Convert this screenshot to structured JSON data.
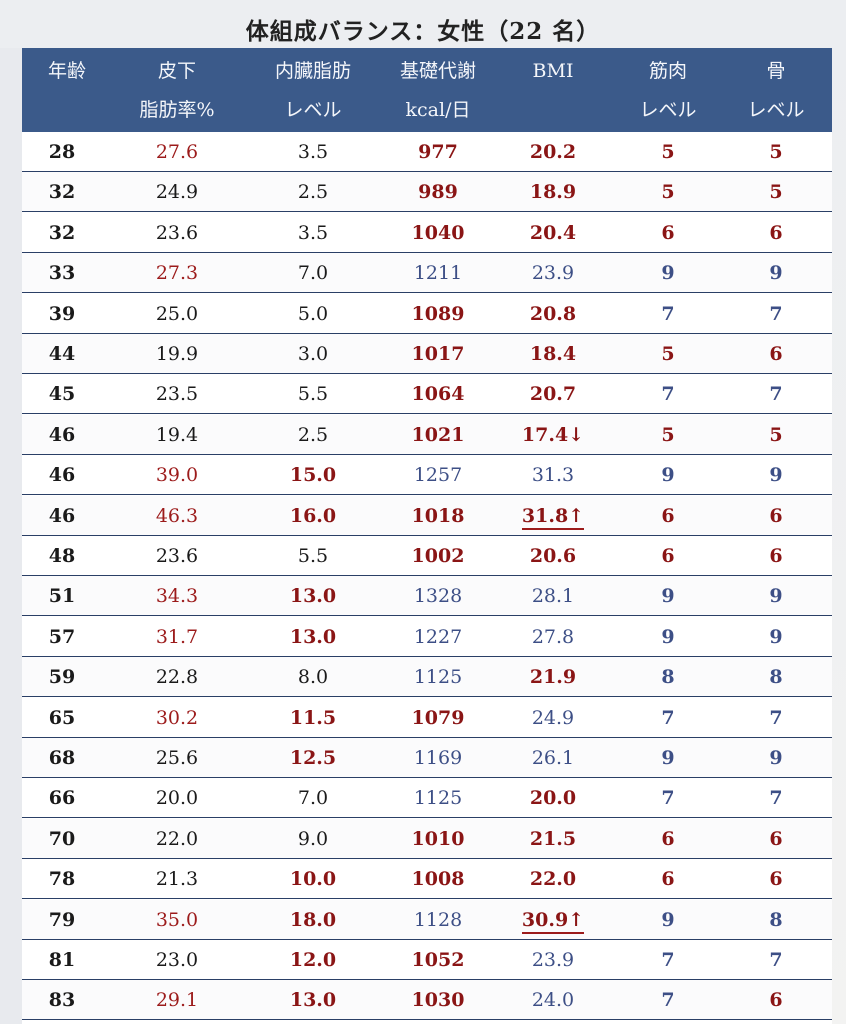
{
  "title": "体組成バランス：女性（22 名）",
  "headers": {
    "age": [
      "年齢",
      ""
    ],
    "fat": [
      "皮下",
      "脂肪率%"
    ],
    "visceral": [
      "内臓脂肪",
      "レベル"
    ],
    "bmr": [
      "基礎代謝",
      "kcal/日"
    ],
    "bmi": [
      "BMI",
      ""
    ],
    "muscle": [
      "筋肉",
      "レベル"
    ],
    "bone": [
      "骨",
      "レベル"
    ]
  },
  "colors": {
    "header_bg": "#3b5a8a",
    "red": "#9c1b1b",
    "blue": "#3d4f86",
    "black": "#1a1a1a"
  },
  "rows": [
    {
      "age": "28",
      "fat": "27.6",
      "fat_c": "red",
      "vis": "3.5",
      "vis_c": "black",
      "bmr": "977",
      "bmr_c": "redb",
      "bmi": "20.2",
      "bmi_c": "redb",
      "mus": "5",
      "mus_c": "redb",
      "bone": "5",
      "bone_c": "redb"
    },
    {
      "age": "32",
      "fat": "24.9",
      "fat_c": "black",
      "vis": "2.5",
      "vis_c": "black",
      "bmr": "989",
      "bmr_c": "redb",
      "bmi": "18.9",
      "bmi_c": "redb",
      "mus": "5",
      "mus_c": "redb",
      "bone": "5",
      "bone_c": "redb"
    },
    {
      "age": "32",
      "fat": "23.6",
      "fat_c": "black",
      "vis": "3.5",
      "vis_c": "black",
      "bmr": "1040",
      "bmr_c": "redb",
      "bmi": "20.4",
      "bmi_c": "redb",
      "mus": "6",
      "mus_c": "redb",
      "bone": "6",
      "bone_c": "redb"
    },
    {
      "age": "33",
      "fat": "27.3",
      "fat_c": "red",
      "vis": "7.0",
      "vis_c": "black",
      "bmr": "1211",
      "bmr_c": "blue",
      "bmi": "23.9",
      "bmi_c": "blue",
      "mus": "9",
      "mus_c": "blue",
      "bone": "9",
      "bone_c": "blue"
    },
    {
      "age": "39",
      "fat": "25.0",
      "fat_c": "black",
      "vis": "5.0",
      "vis_c": "black",
      "bmr": "1089",
      "bmr_c": "redb",
      "bmi": "20.8",
      "bmi_c": "redb",
      "mus": "7",
      "mus_c": "blue",
      "bone": "7",
      "bone_c": "blue"
    },
    {
      "age": "44",
      "fat": "19.9",
      "fat_c": "black",
      "vis": "3.0",
      "vis_c": "black",
      "bmr": "1017",
      "bmr_c": "redb",
      "bmi": "18.4",
      "bmi_c": "redb",
      "mus": "5",
      "mus_c": "redb",
      "bone": "6",
      "bone_c": "redb"
    },
    {
      "age": "45",
      "fat": "23.5",
      "fat_c": "black",
      "vis": "5.5",
      "vis_c": "black",
      "bmr": "1064",
      "bmr_c": "redb",
      "bmi": "20.7",
      "bmi_c": "redb",
      "mus": "7",
      "mus_c": "blue",
      "bone": "7",
      "bone_c": "blue"
    },
    {
      "age": "46",
      "fat": "19.4",
      "fat_c": "black",
      "vis": "2.5",
      "vis_c": "black",
      "bmr": "1021",
      "bmr_c": "redb",
      "bmi": "17.4↓",
      "bmi_c": "redb",
      "mus": "5",
      "mus_c": "redb",
      "bone": "5",
      "bone_c": "redb"
    },
    {
      "age": "46",
      "fat": "39.0",
      "fat_c": "red",
      "vis": "15.0",
      "vis_c": "redb",
      "bmr": "1257",
      "bmr_c": "blue",
      "bmi": "31.3",
      "bmi_c": "blue",
      "mus": "9",
      "mus_c": "blue",
      "bone": "9",
      "bone_c": "blue"
    },
    {
      "age": "46",
      "fat": "46.3",
      "fat_c": "red",
      "vis": "16.0",
      "vis_c": "redb",
      "bmr": "1018",
      "bmr_c": "redb",
      "bmi": "31.8↑",
      "bmi_c": "flag",
      "mus": "6",
      "mus_c": "redb",
      "bone": "6",
      "bone_c": "redb"
    },
    {
      "age": "48",
      "fat": "23.6",
      "fat_c": "black",
      "vis": "5.5",
      "vis_c": "black",
      "bmr": "1002",
      "bmr_c": "redb",
      "bmi": "20.6",
      "bmi_c": "redb",
      "mus": "6",
      "mus_c": "redb",
      "bone": "6",
      "bone_c": "redb"
    },
    {
      "age": "51",
      "fat": "34.3",
      "fat_c": "red",
      "vis": "13.0",
      "vis_c": "redb",
      "bmr": "1328",
      "bmr_c": "blue",
      "bmi": "28.1",
      "bmi_c": "blue",
      "mus": "9",
      "mus_c": "blue",
      "bone": "9",
      "bone_c": "blue"
    },
    {
      "age": "57",
      "fat": "31.7",
      "fat_c": "red",
      "vis": "13.0",
      "vis_c": "redb",
      "bmr": "1227",
      "bmr_c": "blue",
      "bmi": "27.8",
      "bmi_c": "blue",
      "mus": "9",
      "mus_c": "blue",
      "bone": "9",
      "bone_c": "blue"
    },
    {
      "age": "59",
      "fat": "22.8",
      "fat_c": "black",
      "vis": "8.0",
      "vis_c": "black",
      "bmr": "1125",
      "bmr_c": "blue",
      "bmi": "21.9",
      "bmi_c": "redb",
      "mus": "8",
      "mus_c": "blue",
      "bone": "8",
      "bone_c": "blue"
    },
    {
      "age": "65",
      "fat": "30.2",
      "fat_c": "red",
      "vis": "11.5",
      "vis_c": "redb",
      "bmr": "1079",
      "bmr_c": "redb",
      "bmi": "24.9",
      "bmi_c": "blue",
      "mus": "7",
      "mus_c": "blue",
      "bone": "7",
      "bone_c": "blue"
    },
    {
      "age": "68",
      "fat": "25.6",
      "fat_c": "black",
      "vis": "12.5",
      "vis_c": "redb",
      "bmr": "1169",
      "bmr_c": "blue",
      "bmi": "26.1",
      "bmi_c": "blue",
      "mus": "9",
      "mus_c": "blue",
      "bone": "9",
      "bone_c": "blue"
    },
    {
      "age": "66",
      "fat": "20.0",
      "fat_c": "black",
      "vis": "7.0",
      "vis_c": "black",
      "bmr": "1125",
      "bmr_c": "blue",
      "bmi": "20.0",
      "bmi_c": "redb",
      "mus": "7",
      "mus_c": "blue",
      "bone": "7",
      "bone_c": "blue"
    },
    {
      "age": "70",
      "fat": "22.0",
      "fat_c": "black",
      "vis": "9.0",
      "vis_c": "black",
      "bmr": "1010",
      "bmr_c": "redb",
      "bmi": "21.5",
      "bmi_c": "redb",
      "mus": "6",
      "mus_c": "redb",
      "bone": "6",
      "bone_c": "redb"
    },
    {
      "age": "78",
      "fat": "21.3",
      "fat_c": "black",
      "vis": "10.0",
      "vis_c": "redb",
      "bmr": "1008",
      "bmr_c": "redb",
      "bmi": "22.0",
      "bmi_c": "redb",
      "mus": "6",
      "mus_c": "redb",
      "bone": "6",
      "bone_c": "redb"
    },
    {
      "age": "79",
      "fat": "35.0",
      "fat_c": "red",
      "vis": "18.0",
      "vis_c": "redb",
      "bmr": "1128",
      "bmr_c": "blue",
      "bmi": "30.9↑",
      "bmi_c": "flag",
      "mus": "9",
      "mus_c": "blue",
      "bone": "8",
      "bone_c": "blue"
    },
    {
      "age": "81",
      "fat": "23.0",
      "fat_c": "black",
      "vis": "12.0",
      "vis_c": "redb",
      "bmr": "1052",
      "bmr_c": "redb",
      "bmi": "23.9",
      "bmi_c": "blue",
      "mus": "7",
      "mus_c": "blue",
      "bone": "7",
      "bone_c": "blue"
    },
    {
      "age": "83",
      "fat": "29.1",
      "fat_c": "red",
      "vis": "13.0",
      "vis_c": "redb",
      "bmr": "1030",
      "bmr_c": "redb",
      "bmi": "24.0",
      "bmi_c": "blue",
      "mus": "7",
      "mus_c": "blue",
      "bone": "6",
      "bone_c": "redb"
    }
  ]
}
